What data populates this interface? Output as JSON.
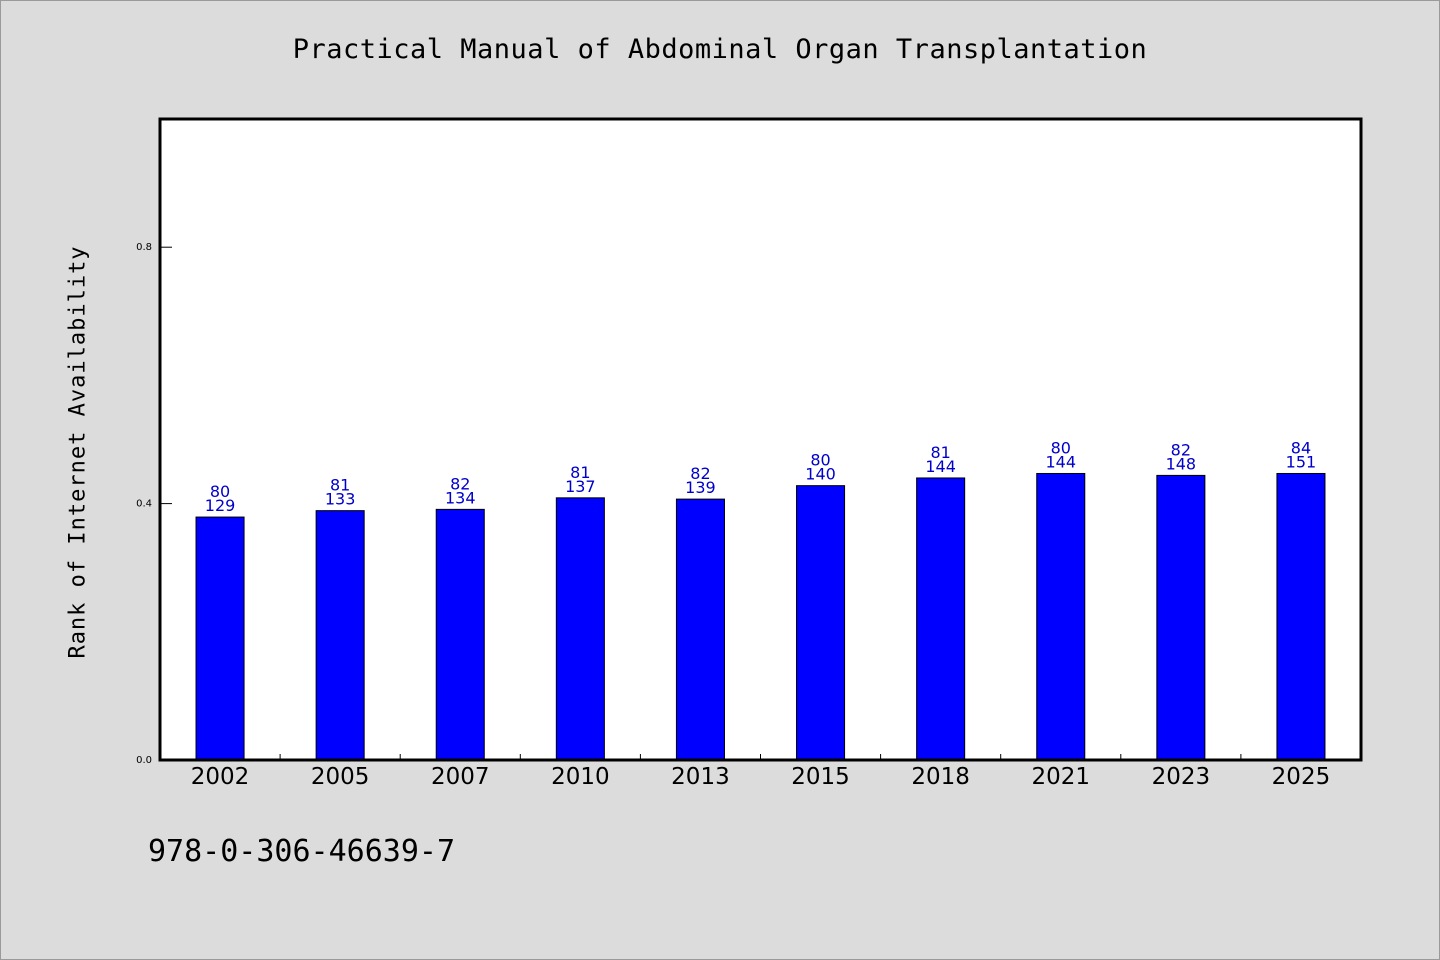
{
  "chart_data": {
    "type": "bar",
    "title": "Practical Manual of Abdominal Organ Transplantation",
    "xlabel": "",
    "ylabel": "Rank of Internet Availability",
    "ylim": [
      0,
      1.0
    ],
    "yticks": [
      {
        "value": 0.0,
        "label": "0.0"
      },
      {
        "value": 0.4,
        "label": "0.4"
      },
      {
        "value": 0.8,
        "label": "0.8"
      }
    ],
    "categories": [
      "2002",
      "2005",
      "2007",
      "2010",
      "2013",
      "2015",
      "2018",
      "2021",
      "2023",
      "2025"
    ],
    "values": [
      0.379,
      0.389,
      0.391,
      0.409,
      0.407,
      0.428,
      0.44,
      0.447,
      0.444,
      0.447
    ],
    "label_top": [
      "80",
      "81",
      "82",
      "81",
      "82",
      "80",
      "81",
      "80",
      "82",
      "84"
    ],
    "label_bottom": [
      "129",
      "133",
      "134",
      "137",
      "139",
      "140",
      "144",
      "144",
      "148",
      "151"
    ],
    "grid": false,
    "legend": "none",
    "colors": {
      "bar": "#0000ff",
      "bar_edge": "#000000",
      "data_label": "#0000cc",
      "plot_bg": "#ffffff",
      "figure_bg": "#dcdcdc"
    }
  },
  "footer": {
    "isbn": "978-0-306-46639-7"
  }
}
